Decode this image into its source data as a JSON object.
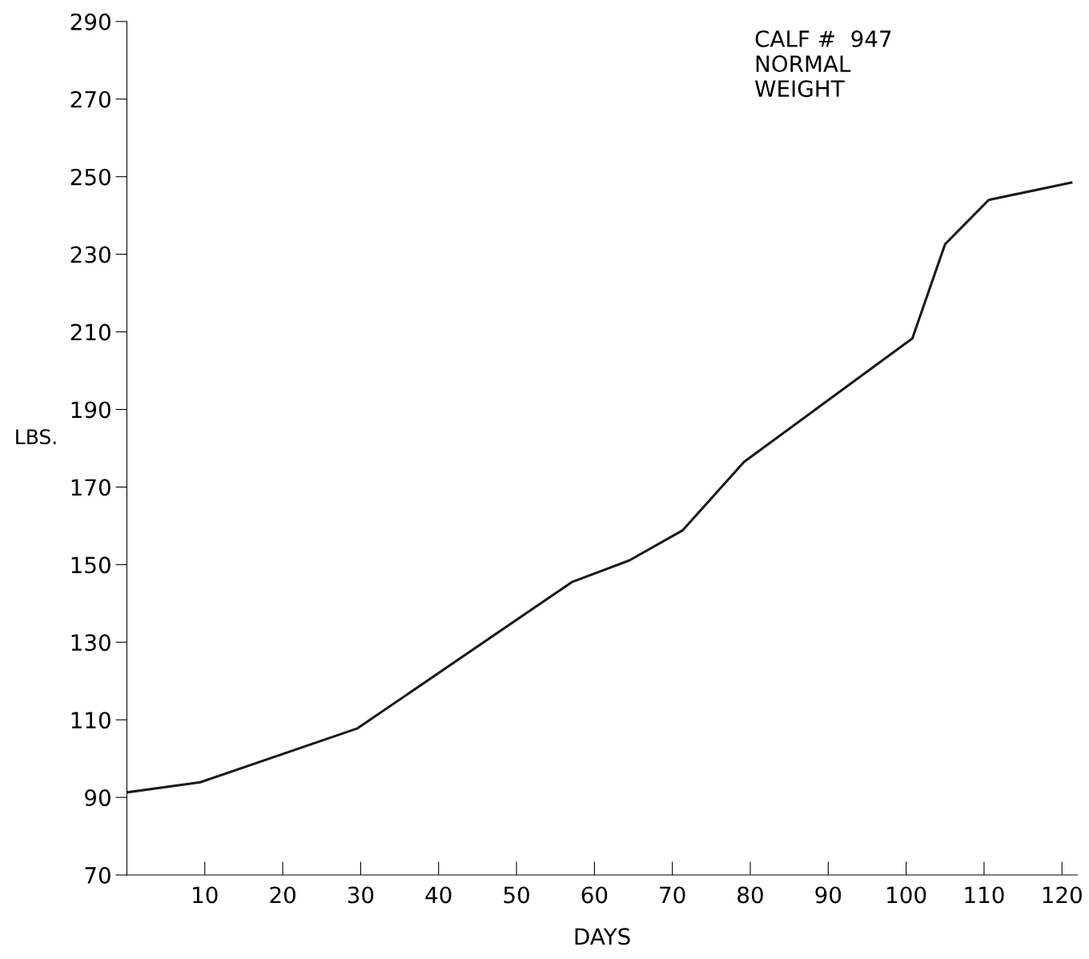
{
  "chart_data": {
    "type": "line",
    "xlabel": "DAYS",
    "ylabel": "LBS.",
    "x": [
      0,
      9.4,
      29.6,
      57.1,
      64.5,
      71.3,
      79.2,
      100.8,
      105,
      110.6,
      121.2
    ],
    "values": [
      91.3,
      93.9,
      107.8,
      145.5,
      151.1,
      158.8,
      176.5,
      208.3,
      232.6,
      244,
      248.5
    ],
    "color": "#1a1a1a",
    "xlim": [
      0,
      122
    ],
    "xticks": [
      10,
      20,
      30,
      40,
      50,
      60,
      70,
      80,
      90,
      100,
      110,
      120
    ],
    "ylim": [
      70,
      290
    ],
    "yticks": [
      70,
      90,
      110,
      130,
      150,
      170,
      190,
      210,
      230,
      250,
      270,
      290
    ],
    "grid": false,
    "marker": "none",
    "line_style": "solid",
    "annotations": [
      "CALF #  947\nNORMAL\nWEIGHT"
    ]
  }
}
